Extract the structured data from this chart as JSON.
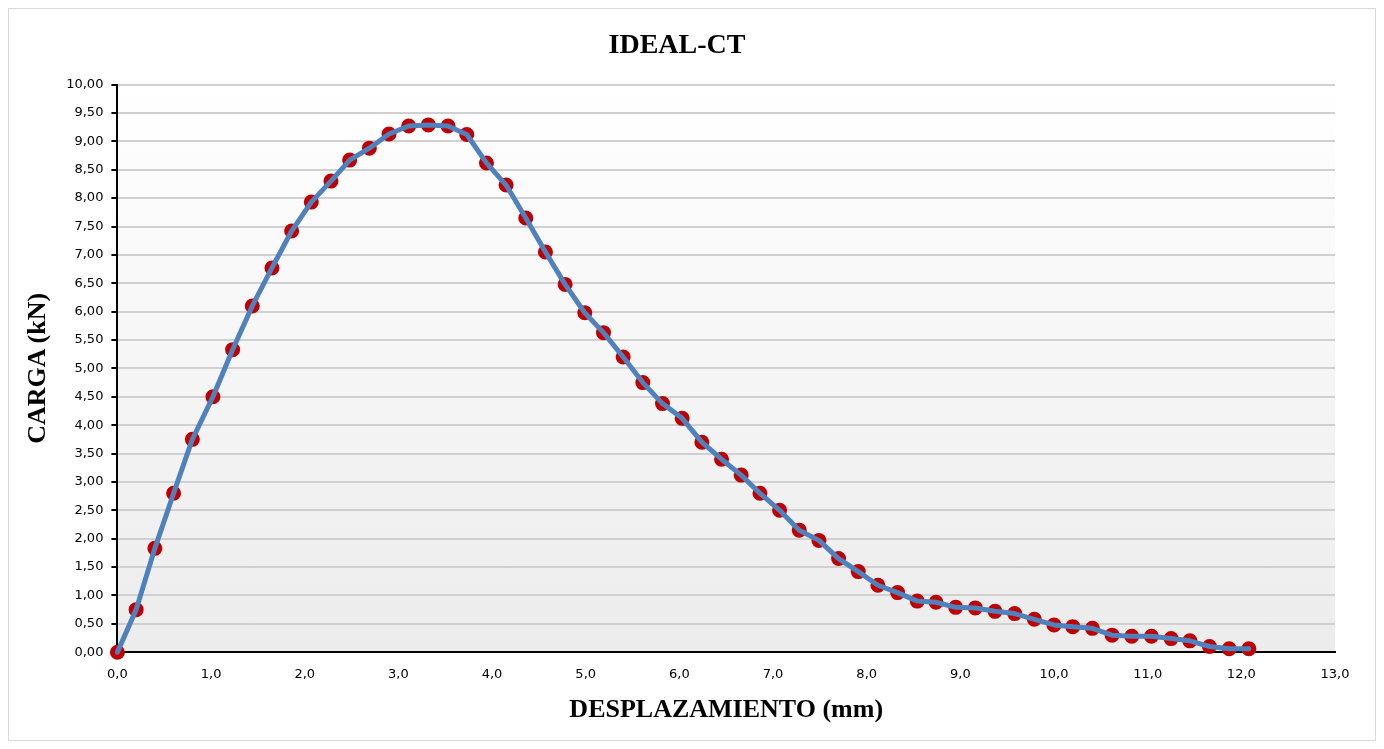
{
  "chart_data": {
    "type": "line",
    "title": "IDEAL-CT",
    "xlabel": "DESPLAZAMIENTO (mm)",
    "ylabel": "CARGA (kN)",
    "x": [
      0,
      0.2,
      0.4,
      0.6,
      0.8,
      1.02,
      1.23,
      1.44,
      1.65,
      1.86,
      2.07,
      2.28,
      2.48,
      2.69,
      2.9,
      3.11,
      3.32,
      3.53,
      3.73,
      3.94,
      4.15,
      4.36,
      4.57,
      4.78,
      4.99,
      5.19,
      5.4,
      5.61,
      5.82,
      6.03,
      6.24,
      6.45,
      6.66,
      6.86,
      7.07,
      7.28,
      7.49,
      7.7,
      7.91,
      8.12,
      8.33,
      8.54,
      8.74,
      8.95,
      9.16,
      9.37,
      9.58,
      9.79,
      10.0,
      10.2,
      10.41,
      10.62,
      10.83,
      11.04,
      11.25,
      11.45,
      11.66,
      11.87,
      12.08
    ],
    "series": [
      {
        "type": "line",
        "marker": "none",
        "color": "#4f81bd",
        "values": [
          0,
          0.75,
          1.83,
          2.8,
          3.75,
          4.5,
          5.33,
          6.1,
          6.77,
          7.42,
          7.93,
          8.3,
          8.67,
          8.88,
          9.13,
          9.27,
          9.29,
          9.27,
          9.12,
          8.62,
          8.23,
          7.65,
          7.05,
          6.48,
          5.98,
          5.63,
          5.2,
          4.75,
          4.38,
          4.12,
          3.7,
          3.4,
          3.12,
          2.8,
          2.5,
          2.15,
          1.97,
          1.65,
          1.42,
          1.18,
          1.05,
          0.9,
          0.88,
          0.79,
          0.78,
          0.72,
          0.68,
          0.58,
          0.48,
          0.45,
          0.42,
          0.3,
          0.28,
          0.28,
          0.24,
          0.2,
          0.1,
          0.06,
          0.06
        ]
      },
      {
        "type": "scatter",
        "marker": "circle",
        "color": "#c00000",
        "values": [
          0,
          0.75,
          1.83,
          2.8,
          3.75,
          4.5,
          5.33,
          6.1,
          6.77,
          7.42,
          7.93,
          8.3,
          8.67,
          8.88,
          9.13,
          9.27,
          9.29,
          9.27,
          9.12,
          8.62,
          8.23,
          7.65,
          7.05,
          6.48,
          5.98,
          5.63,
          5.2,
          4.75,
          4.38,
          4.12,
          3.7,
          3.4,
          3.12,
          2.8,
          2.5,
          2.15,
          1.97,
          1.65,
          1.42,
          1.18,
          1.05,
          0.9,
          0.88,
          0.79,
          0.78,
          0.72,
          0.68,
          0.58,
          0.48,
          0.45,
          0.42,
          0.3,
          0.28,
          0.28,
          0.24,
          0.2,
          0.1,
          0.06,
          0.06
        ]
      }
    ],
    "xlim": [
      0,
      13
    ],
    "xticks": [
      {
        "value": 0,
        "label": "0,0"
      },
      {
        "value": 1,
        "label": "1,0"
      },
      {
        "value": 2,
        "label": "2,0"
      },
      {
        "value": 3,
        "label": "3,0"
      },
      {
        "value": 4,
        "label": "4,0"
      },
      {
        "value": 5,
        "label": "5,0"
      },
      {
        "value": 6,
        "label": "6,0"
      },
      {
        "value": 7,
        "label": "7,0"
      },
      {
        "value": 8,
        "label": "8,0"
      },
      {
        "value": 9,
        "label": "9,0"
      },
      {
        "value": 10,
        "label": "10,0"
      },
      {
        "value": 11,
        "label": "11,0"
      },
      {
        "value": 12,
        "label": "12,0"
      },
      {
        "value": 13,
        "label": "13,0"
      }
    ],
    "ylim": [
      0,
      10
    ],
    "yticks": [
      {
        "value": 0,
        "label": "0,00"
      },
      {
        "value": 0.5,
        "label": "0,50"
      },
      {
        "value": 1,
        "label": "1,00"
      },
      {
        "value": 1.5,
        "label": "1,50"
      },
      {
        "value": 2,
        "label": "2,00"
      },
      {
        "value": 2.5,
        "label": "2,50"
      },
      {
        "value": 3,
        "label": "3,00"
      },
      {
        "value": 3.5,
        "label": "3,50"
      },
      {
        "value": 4,
        "label": "4,00"
      },
      {
        "value": 4.5,
        "label": "4,50"
      },
      {
        "value": 5,
        "label": "5,00"
      },
      {
        "value": 5.5,
        "label": "5,50"
      },
      {
        "value": 6,
        "label": "6,00"
      },
      {
        "value": 6.5,
        "label": "6,50"
      },
      {
        "value": 7,
        "label": "7,00"
      },
      {
        "value": 7.5,
        "label": "7,50"
      },
      {
        "value": 8,
        "label": "8,00"
      },
      {
        "value": 8.5,
        "label": "8,50"
      },
      {
        "value": 9,
        "label": "9,00"
      },
      {
        "value": 9.5,
        "label": "9,50"
      },
      {
        "value": 10,
        "label": "10,00"
      }
    ],
    "grid": "y",
    "line_style": "solid",
    "legend": false
  }
}
